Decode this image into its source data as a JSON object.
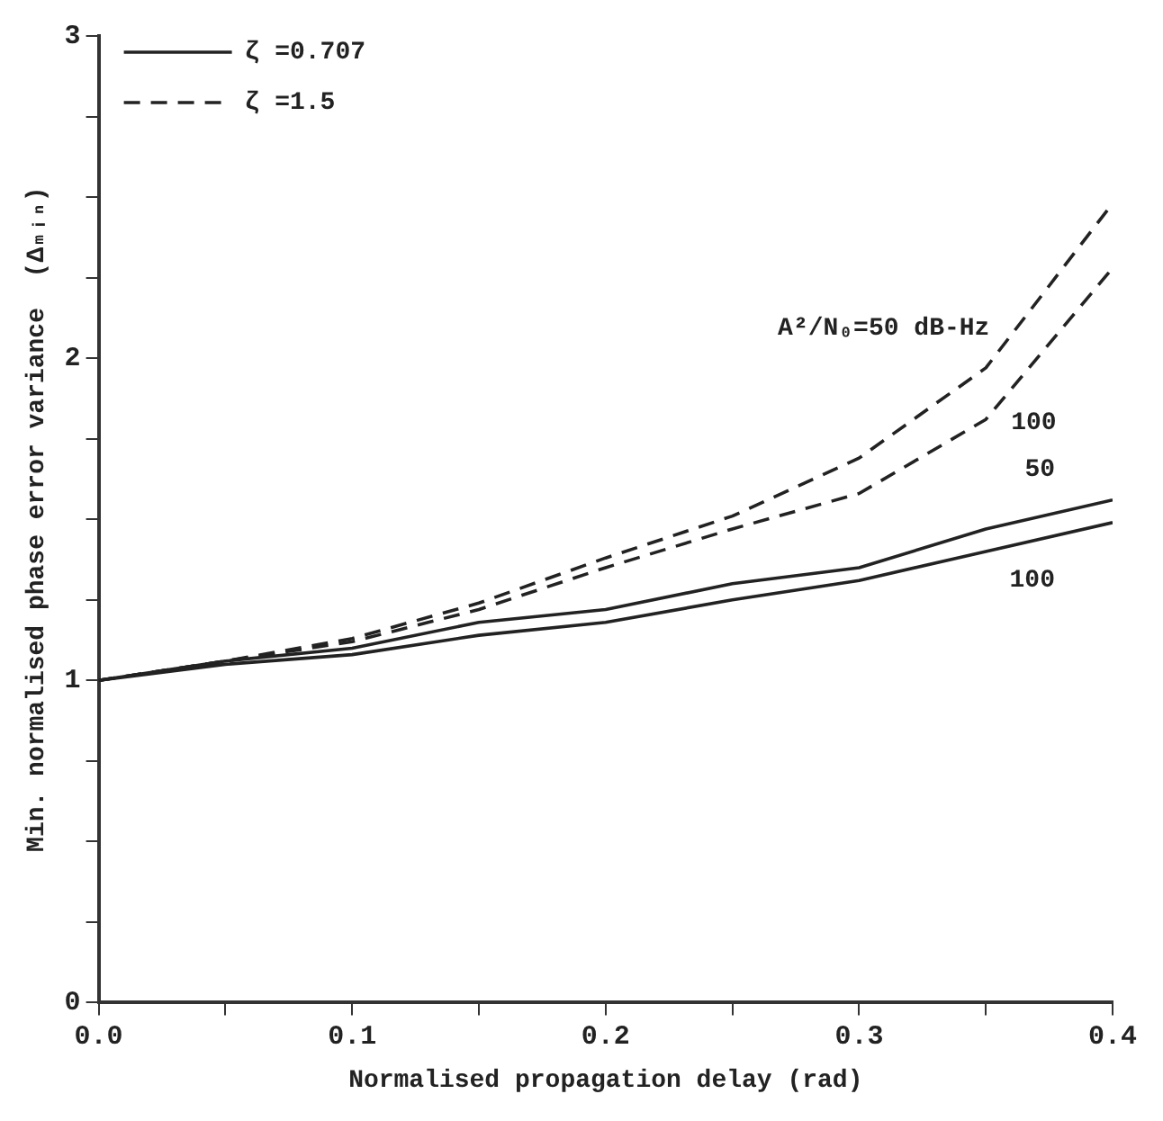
{
  "chart_data": {
    "type": "line",
    "xlabel": "Normalised propagation delay (rad)",
    "ylabel": "Min. normalised phase error variance  (Δₘᵢₙ)",
    "x": [
      0,
      0.05,
      0.1,
      0.15,
      0.2,
      0.25,
      0.3,
      0.35,
      0.4
    ],
    "series": [
      {
        "name": "ζ =0.707",
        "color": "#222222",
        "line_style": "solid",
        "values": [
          1,
          1.06,
          1.1,
          1.18,
          1.22,
          1.3,
          1.35,
          1.47,
          1.56
        ]
      },
      {
        "color": "#222222",
        "line_style": "solid",
        "values": [
          1,
          1.05,
          1.08,
          1.14,
          1.18,
          1.25,
          1.31,
          1.4,
          1.49
        ]
      },
      {
        "name": "ζ =1.5",
        "color": "#222222",
        "line_style": "dashed",
        "values": [
          1,
          1.06,
          1.13,
          1.24,
          1.38,
          1.51,
          1.69,
          1.97,
          2.48
        ]
      },
      {
        "color": "#222222",
        "line_style": "dashed",
        "values": [
          1,
          1.06,
          1.12,
          1.22,
          1.35,
          1.47,
          1.58,
          1.81,
          2.28
        ]
      }
    ],
    "annotations": [
      {
        "text": "A²/N₀=50 dB-Hz",
        "x": 0.36,
        "y": 2.07
      },
      {
        "text": "100",
        "x": 0.35,
        "y": 1.81
      },
      {
        "text": "50",
        "x": 0.4,
        "y": 1.56
      },
      {
        "text": "100",
        "x": 0.4,
        "y": 1.49
      }
    ],
    "xlim": [
      0,
      0.4
    ],
    "xticks": [
      {
        "value": 0,
        "label": "0.0"
      },
      {
        "value": 0.05,
        "label": null
      },
      0.1,
      {
        "value": 0.15,
        "label": null
      },
      0.2,
      {
        "value": 0.25,
        "label": null
      },
      0.3,
      {
        "value": 0.35,
        "label": null
      },
      0.4
    ],
    "ylim": [
      0,
      3
    ],
    "yticks": [
      0,
      {
        "value": 0.25,
        "label": null
      },
      {
        "value": 0.5,
        "label": null
      },
      {
        "value": 0.75,
        "label": null
      },
      1,
      {
        "value": 1.25,
        "label": null
      },
      {
        "value": 1.5,
        "label": null
      },
      {
        "value": 1.75,
        "label": null
      },
      2,
      {
        "value": 2.25,
        "label": null
      },
      {
        "value": 2.5,
        "label": null
      },
      {
        "value": 2.75,
        "label": null
      },
      3
    ],
    "grid": false,
    "legend": "top left",
    "marker": "none"
  }
}
